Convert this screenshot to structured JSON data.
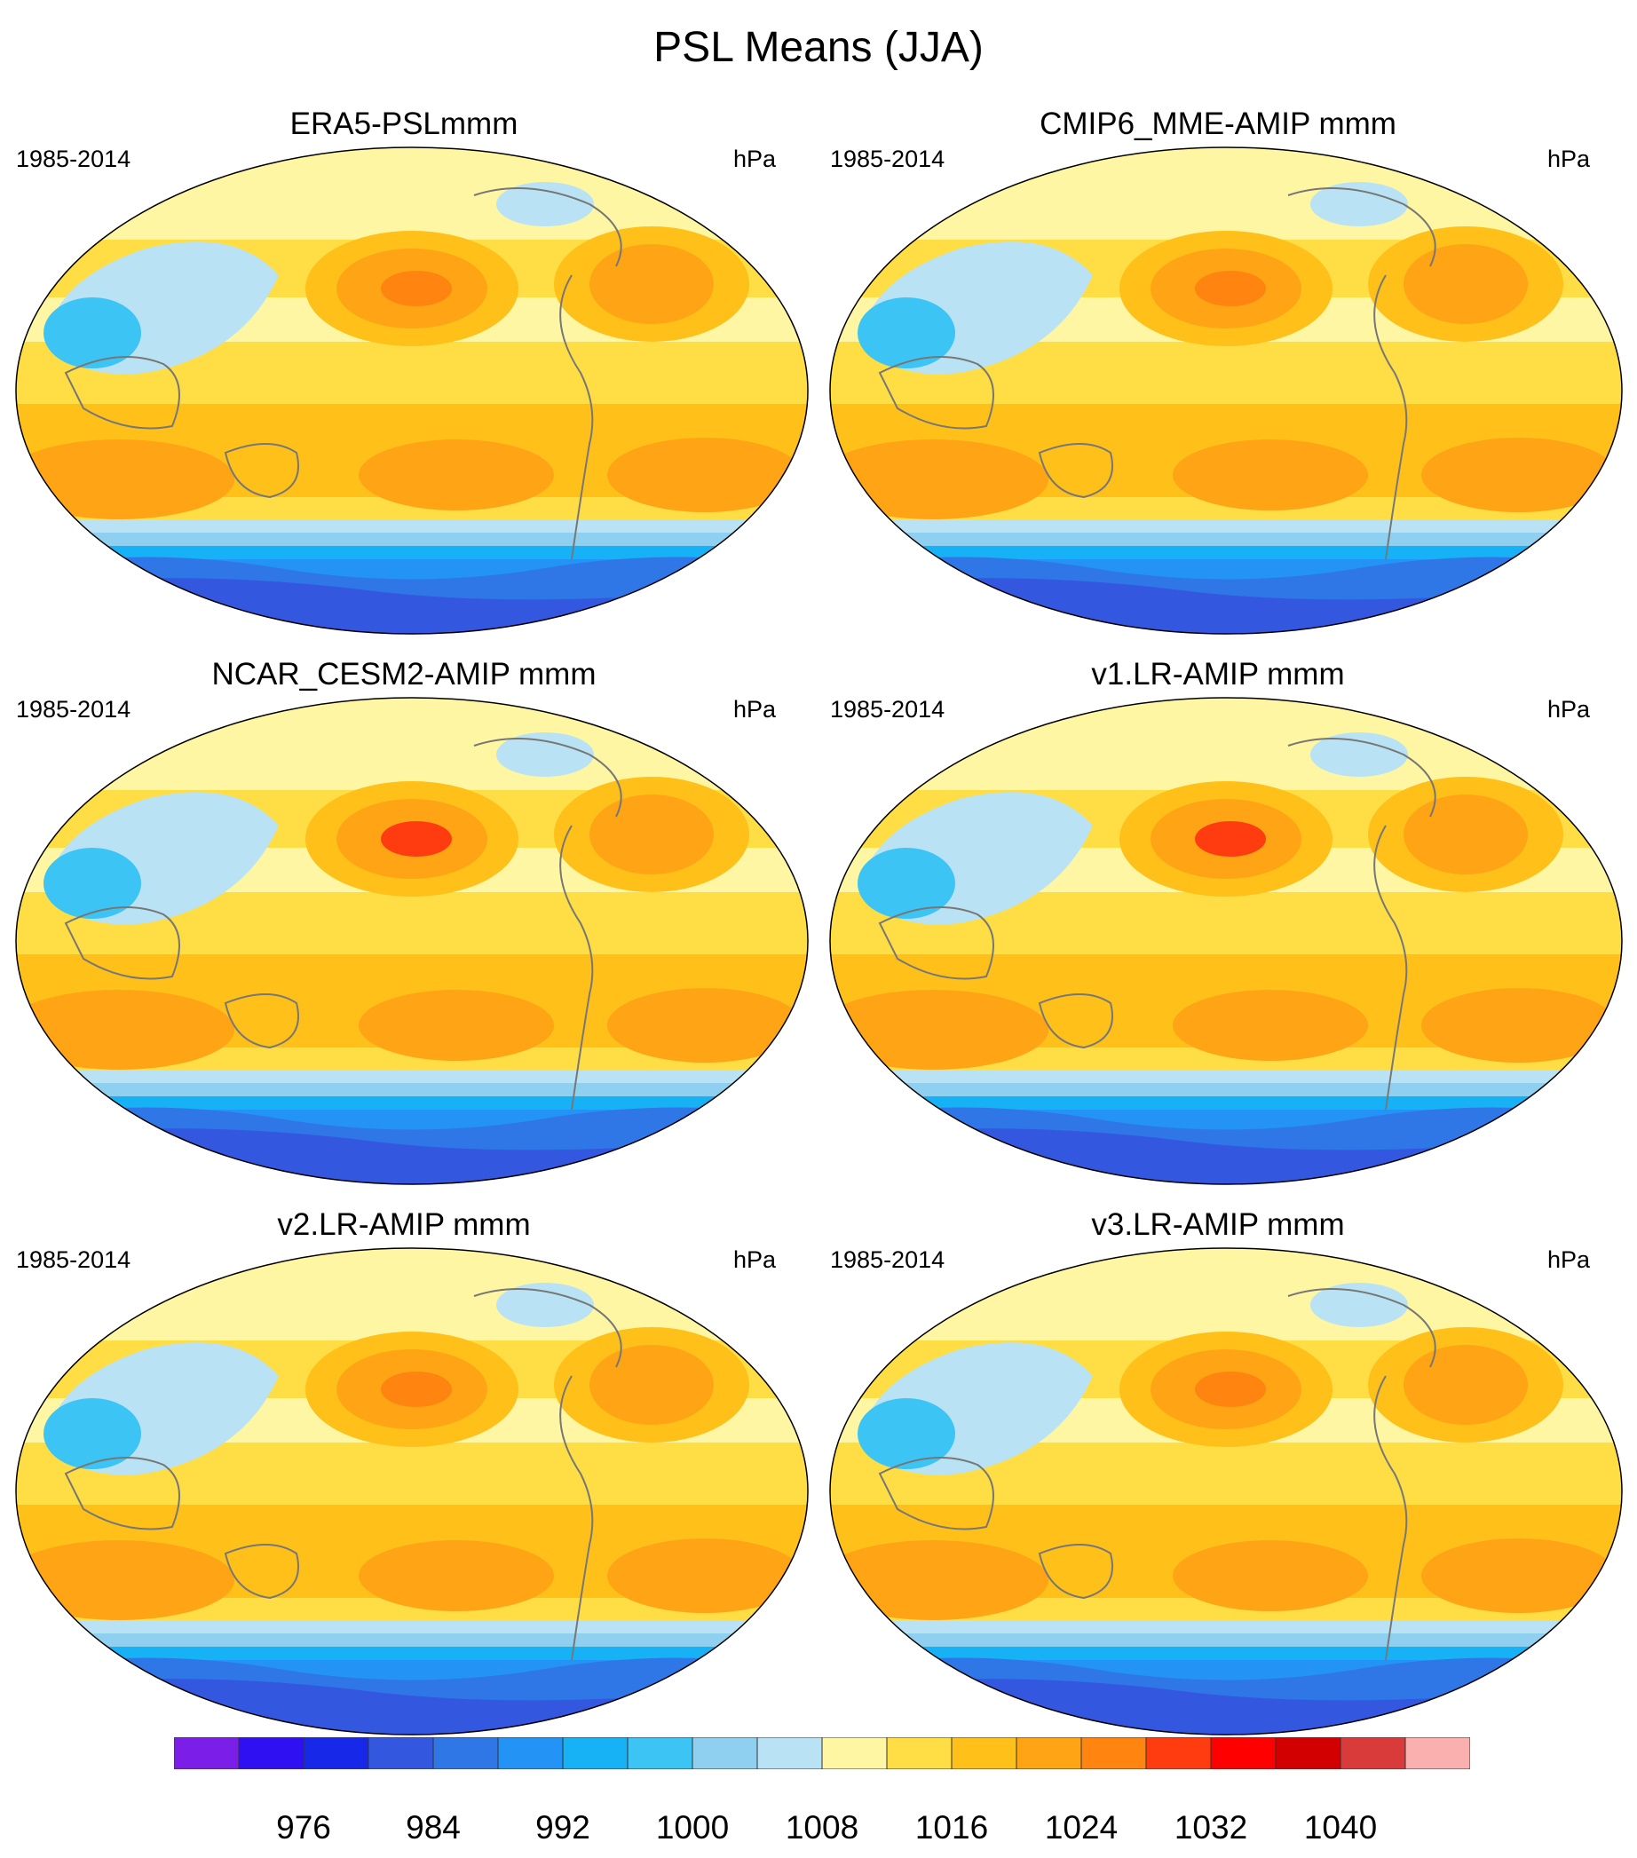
{
  "figure": {
    "title": "PSL Means (JJA)"
  },
  "panels": [
    {
      "title": "ERA5-PSLmmm",
      "period": "1985-2014",
      "units": "hPa"
    },
    {
      "title": "CMIP6_MME-AMIP  mmm",
      "period": "1985-2014",
      "units": "hPa"
    },
    {
      "title": "NCAR_CESM2-AMIP  mmm",
      "period": "1985-2014",
      "units": "hPa"
    },
    {
      "title": "v1.LR-AMIP  mmm",
      "period": "1985-2014",
      "units": "hPa"
    },
    {
      "title": "v2.LR-AMIP  mmm",
      "period": "1985-2014",
      "units": "hPa"
    },
    {
      "title": "v3.LR-AMIP  mmm",
      "period": "1985-2014",
      "units": "hPa"
    }
  ],
  "colorbar": {
    "colors": [
      "#7b1ee8",
      "#2f10f2",
      "#1828e8",
      "#3457e0",
      "#2f77e6",
      "#2393f5",
      "#17b2f5",
      "#3cc4f5",
      "#8fcfef",
      "#b9e3f4",
      "#fff6a3",
      "#ffdd45",
      "#ffc01a",
      "#ffa414",
      "#ff8410",
      "#ff3b10",
      "#ff0000",
      "#d20000",
      "#d93a3a",
      "#fbb0b0"
    ],
    "tick_values": [
      "976",
      "984",
      "992",
      "1000",
      "1008",
      "1016",
      "1024",
      "1032",
      "1040"
    ]
  }
}
